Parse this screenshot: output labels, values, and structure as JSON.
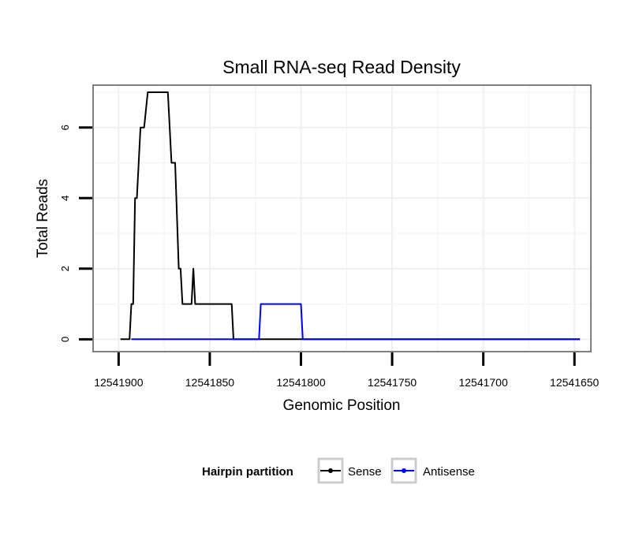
{
  "chart_data": {
    "type": "line",
    "title": "Small RNA-seq Read Density",
    "xlabel": "Genomic Position",
    "ylabel": "Total Reads",
    "xlim": [
      12541914,
      12541641
    ],
    "ylim": [
      -0.35,
      7.2
    ],
    "x_reversed": true,
    "x_ticks": [
      12541900,
      12541850,
      12541800,
      12541750,
      12541700,
      12541650
    ],
    "x_tick_labels": [
      "12541900",
      "12541850",
      "12541800",
      "12541750",
      "12541700",
      "12541650"
    ],
    "y_ticks": [
      0,
      2,
      4,
      6
    ],
    "y_tick_labels": [
      "0",
      "2",
      "4",
      "6"
    ],
    "grid": true,
    "legend": {
      "title": "Hairpin partition",
      "position": "bottom",
      "entries": [
        "Sense",
        "Antisense"
      ]
    },
    "series": [
      {
        "name": "Sense",
        "color": "#000000",
        "points": [
          [
            12541899,
            0
          ],
          [
            12541894,
            0
          ],
          [
            12541893,
            1
          ],
          [
            12541892,
            1
          ],
          [
            12541891,
            4
          ],
          [
            12541890,
            4
          ],
          [
            12541888,
            6
          ],
          [
            12541886,
            6
          ],
          [
            12541884,
            7
          ],
          [
            12541873,
            7
          ],
          [
            12541871,
            5
          ],
          [
            12541869,
            5
          ],
          [
            12541867,
            2
          ],
          [
            12541866,
            2
          ],
          [
            12541865,
            1
          ],
          [
            12541860,
            1
          ],
          [
            12541859,
            2
          ],
          [
            12541858,
            1
          ],
          [
            12541838,
            1
          ],
          [
            12541837,
            0
          ],
          [
            12541647,
            0
          ]
        ]
      },
      {
        "name": "Antisense",
        "color": "#0000ff",
        "points": [
          [
            12541893,
            0
          ],
          [
            12541823,
            0
          ],
          [
            12541822,
            1
          ],
          [
            12541800,
            1
          ],
          [
            12541799,
            0
          ],
          [
            12541647,
            0
          ]
        ]
      }
    ]
  }
}
